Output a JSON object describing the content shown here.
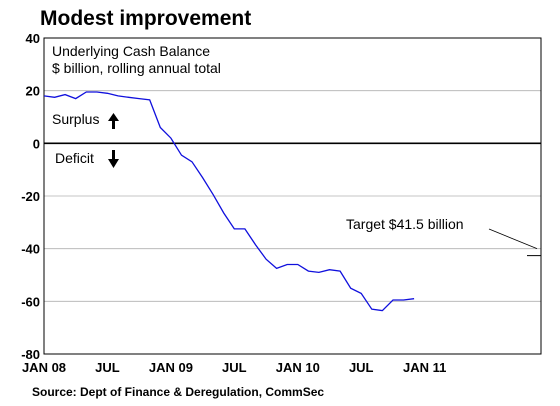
{
  "chart_data": {
    "type": "line",
    "title": "Modest improvement",
    "subtitle_lines": [
      "Underlying Cash Balance",
      "$ billion, rolling annual total"
    ],
    "source": "Source: Dept of Finance & Deregulation, CommSec",
    "ylim": [
      -80,
      40
    ],
    "yticks": [
      40,
      20,
      0,
      -20,
      -40,
      -60,
      -80
    ],
    "xlim": [
      "2008-01",
      "2011-12"
    ],
    "x_tick_labels": [
      "JAN 08",
      "JUL",
      "JAN 09",
      "JUL",
      "JAN 10",
      "JUL",
      "JAN 11"
    ],
    "x_tick_dates": [
      "2008-01",
      "2008-07",
      "2009-01",
      "2009-07",
      "2010-01",
      "2010-07",
      "2011-01"
    ],
    "grid": true,
    "series": [
      {
        "color": "#1010dd",
        "x": [
          "2008-01",
          "2008-02",
          "2008-03",
          "2008-04",
          "2008-05",
          "2008-06",
          "2008-07",
          "2008-08",
          "2008-09",
          "2008-10",
          "2008-11",
          "2008-12",
          "2009-01",
          "2009-02",
          "2009-03",
          "2009-04",
          "2009-05",
          "2009-06",
          "2009-07",
          "2009-08",
          "2009-09",
          "2009-10",
          "2009-11",
          "2009-12",
          "2010-01",
          "2010-02",
          "2010-03",
          "2010-04",
          "2010-05",
          "2010-06",
          "2010-07",
          "2010-08",
          "2010-09",
          "2010-10",
          "2010-11",
          "2010-12"
        ],
        "y": [
          18,
          17.5,
          18.5,
          17,
          19.5,
          19.5,
          19,
          18,
          17.5,
          17,
          16.5,
          6,
          2,
          -4.5,
          -7,
          -13,
          -19.5,
          -26.5,
          -32.5,
          -32.5,
          -38.5,
          -44,
          -47.5,
          -46,
          -46,
          -48.5,
          -49,
          -48,
          -48.5,
          -55,
          -57,
          -63,
          -63.5,
          -59.5,
          -59.5,
          -59
        ]
      }
    ],
    "annotations": {
      "surplus": "Surplus",
      "deficit": "Deficit",
      "target_label": "Target $41.5 billion",
      "target_value": -41.5
    }
  }
}
